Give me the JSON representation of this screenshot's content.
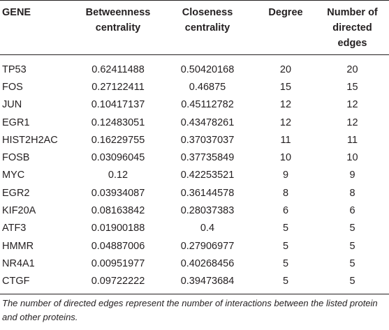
{
  "table": {
    "headers": {
      "gene": "GENE",
      "betweenness": "Betweenness centrality",
      "closeness": "Closeness centrality",
      "degree": "Degree",
      "directed": "Number of directed edges"
    },
    "rows": [
      {
        "gene": "TP53",
        "betweenness": "0.62411488",
        "closeness": "0.50420168",
        "degree": "20",
        "directed": "20"
      },
      {
        "gene": "FOS",
        "betweenness": "0.27122411",
        "closeness": "0.46875",
        "degree": "15",
        "directed": "15"
      },
      {
        "gene": "JUN",
        "betweenness": "0.10417137",
        "closeness": "0.45112782",
        "degree": "12",
        "directed": "12"
      },
      {
        "gene": "EGR1",
        "betweenness": "0.12483051",
        "closeness": "0.43478261",
        "degree": "12",
        "directed": "12"
      },
      {
        "gene": "HIST2H2AC",
        "betweenness": "0.16229755",
        "closeness": "0.37037037",
        "degree": "11",
        "directed": "11"
      },
      {
        "gene": "FOSB",
        "betweenness": "0.03096045",
        "closeness": "0.37735849",
        "degree": "10",
        "directed": "10"
      },
      {
        "gene": "MYC",
        "betweenness": "0.12",
        "closeness": "0.42253521",
        "degree": "9",
        "directed": "9"
      },
      {
        "gene": "EGR2",
        "betweenness": "0.03934087",
        "closeness": "0.36144578",
        "degree": "8",
        "directed": "8"
      },
      {
        "gene": "KIF20A",
        "betweenness": "0.08163842",
        "closeness": "0.28037383",
        "degree": "6",
        "directed": "6"
      },
      {
        "gene": "ATF3",
        "betweenness": "0.01900188",
        "closeness": "0.4",
        "degree": "5",
        "directed": "5"
      },
      {
        "gene": "HMMR",
        "betweenness": "0.04887006",
        "closeness": "0.27906977",
        "degree": "5",
        "directed": "5"
      },
      {
        "gene": "NR4A1",
        "betweenness": "0.00951977",
        "closeness": "0.40268456",
        "degree": "5",
        "directed": "5"
      },
      {
        "gene": "CTGF",
        "betweenness": "0.09722222",
        "closeness": "0.39473684",
        "degree": "5",
        "directed": "5"
      }
    ]
  },
  "footnote": "The number of directed edges represent the number of interactions between the listed protein and other proteins."
}
